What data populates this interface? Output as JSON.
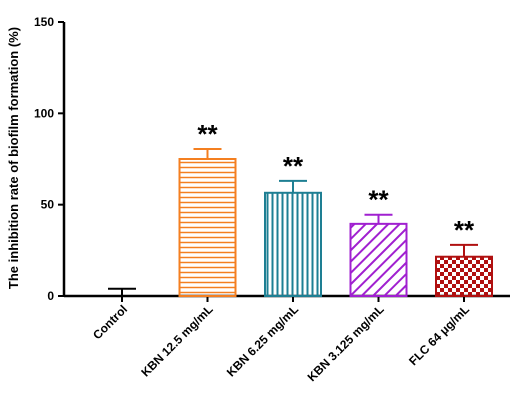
{
  "chart_data": {
    "type": "bar",
    "ylabel": "The inhibition rate of biofilm formation (%)",
    "ylim": [
      0,
      150
    ],
    "yticks": [
      0,
      50,
      100,
      150
    ],
    "categories": [
      "Control",
      "KBN 12.5 mg/mL",
      "KBN 6.25 mg/mL",
      "KBN 3.125 mg/mL",
      "FLC 64 μg/mL"
    ],
    "values": [
      0,
      75,
      56.5,
      39.5,
      21.5
    ],
    "errors": [
      4,
      5.5,
      6.5,
      5,
      6.5
    ],
    "significance": [
      "",
      "**",
      "**",
      "**",
      "**"
    ],
    "colors": [
      "#000000",
      "#f47f20",
      "#1e7f93",
      "#a020d0",
      "#b01010"
    ],
    "patterns": [
      "none",
      "horizontal-lines",
      "vertical-lines",
      "diagonal-lines",
      "checkerboard"
    ]
  }
}
